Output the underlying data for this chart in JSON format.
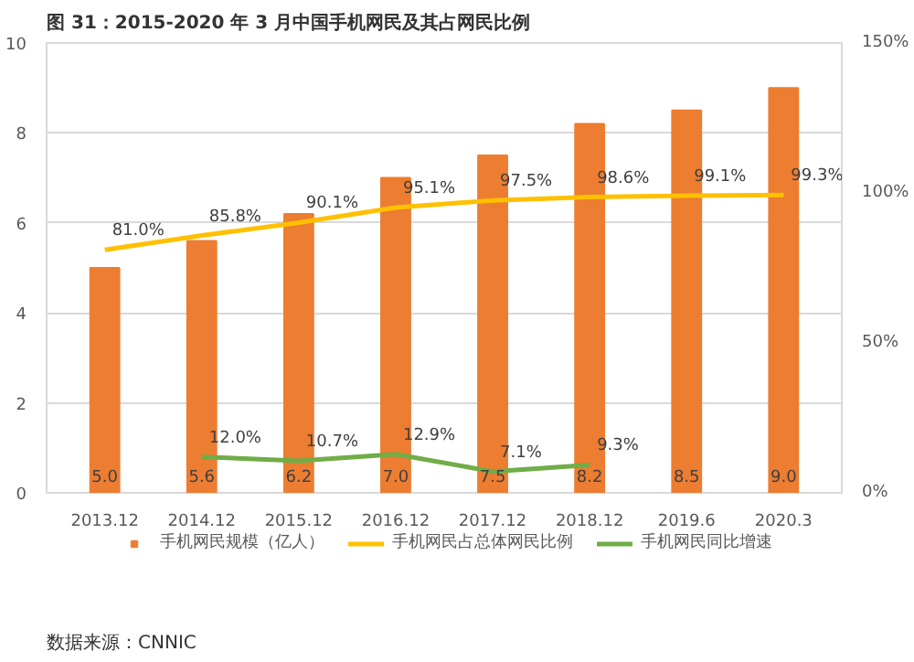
{
  "chart_data": {
    "type": "bar",
    "title": "图 31：2015-2020 年 3 月中国手机网民及其占网民比例",
    "annotations": [
      "数据来源：CNNIC"
    ],
    "categories": [
      "2013.12",
      "2014.12",
      "2015.12",
      "2016.12",
      "2017.12",
      "2018.12",
      "2019.6",
      "2020.3"
    ],
    "series": [
      {
        "name": "手机网民规模（亿人）",
        "color": "#ed7d31",
        "values": [
          5.0,
          5.6,
          6.2,
          7.0,
          7.5,
          8.2,
          8.5,
          9.0
        ],
        "value_labels": [
          "5.0",
          "5.6",
          "6.2",
          "7.0",
          "7.5",
          "8.2",
          "8.5",
          "9.0"
        ]
      },
      {
        "name": "手机网民占总体网民比例",
        "type": "line",
        "axis": "y2",
        "color": "#ffc000",
        "values": [
          81.0,
          85.8,
          90.1,
          95.1,
          97.5,
          98.6,
          99.1,
          99.3
        ],
        "value_labels": [
          "81.0%",
          "85.8%",
          "90.1%",
          "95.1%",
          "97.5%",
          "98.6%",
          "99.1%",
          "99.3%"
        ]
      },
      {
        "name": "手机网民同比增速",
        "type": "line",
        "axis": "y2",
        "color": "#70ad47",
        "values": [
          null,
          12.0,
          10.7,
          12.9,
          7.1,
          9.3,
          null,
          null
        ],
        "value_labels": [
          null,
          "12.0%",
          "10.7%",
          "12.9%",
          "7.1%",
          "9.3%",
          null,
          null
        ]
      }
    ],
    "ylim": [
      0,
      10
    ],
    "yticks": [
      0,
      2,
      4,
      6,
      8,
      10
    ],
    "y2lim": [
      0,
      150
    ],
    "y2ticks": [
      {
        "value": 0,
        "label": "0%"
      },
      {
        "value": 50,
        "label": "50%"
      },
      {
        "value": 100,
        "label": "100%"
      },
      {
        "value": 150,
        "label": "150%"
      }
    ],
    "grid": "y",
    "legend": "bottom"
  }
}
